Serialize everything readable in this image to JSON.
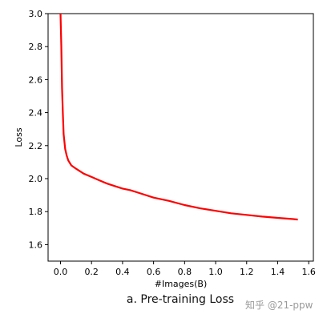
{
  "caption": "a. Pre-training Loss",
  "watermark": "知乎 @21-ppw",
  "chart_data": {
    "type": "line",
    "title": "",
    "xlabel": "#Images(B)",
    "ylabel": "Loss",
    "xlim": [
      -0.08,
      1.63
    ],
    "ylim": [
      1.5,
      3.0
    ],
    "xticks": [
      0.0,
      0.2,
      0.4,
      0.6,
      0.8,
      1.0,
      1.2,
      1.4,
      1.6
    ],
    "xtick_labels": [
      "0.0",
      "0.2",
      "0.4",
      "0.6",
      "0.8",
      "1.0",
      "1.2",
      "1.4",
      "1.6"
    ],
    "yticks": [
      1.6,
      1.8,
      2.0,
      2.2,
      2.4,
      2.6,
      2.8,
      3.0
    ],
    "ytick_labels": [
      "1.6",
      "1.8",
      "2.0",
      "2.2",
      "2.4",
      "2.6",
      "2.8",
      "3.0"
    ],
    "grid": false,
    "legend": "none",
    "series": [
      {
        "color": "#ff0000",
        "x": [
          0.0,
          0.005,
          0.01,
          0.015,
          0.02,
          0.03,
          0.04,
          0.05,
          0.07,
          0.1,
          0.15,
          0.2,
          0.25,
          0.3,
          0.35,
          0.4,
          0.45,
          0.5,
          0.6,
          0.7,
          0.8,
          0.9,
          1.0,
          1.1,
          1.2,
          1.3,
          1.4,
          1.5,
          1.53
        ],
        "y": [
          3.0,
          2.8,
          2.55,
          2.4,
          2.27,
          2.18,
          2.14,
          2.11,
          2.08,
          2.06,
          2.03,
          2.01,
          1.99,
          1.97,
          1.955,
          1.94,
          1.93,
          1.915,
          1.885,
          1.865,
          1.84,
          1.82,
          1.805,
          1.79,
          1.78,
          1.77,
          1.762,
          1.755,
          1.752
        ]
      }
    ]
  }
}
